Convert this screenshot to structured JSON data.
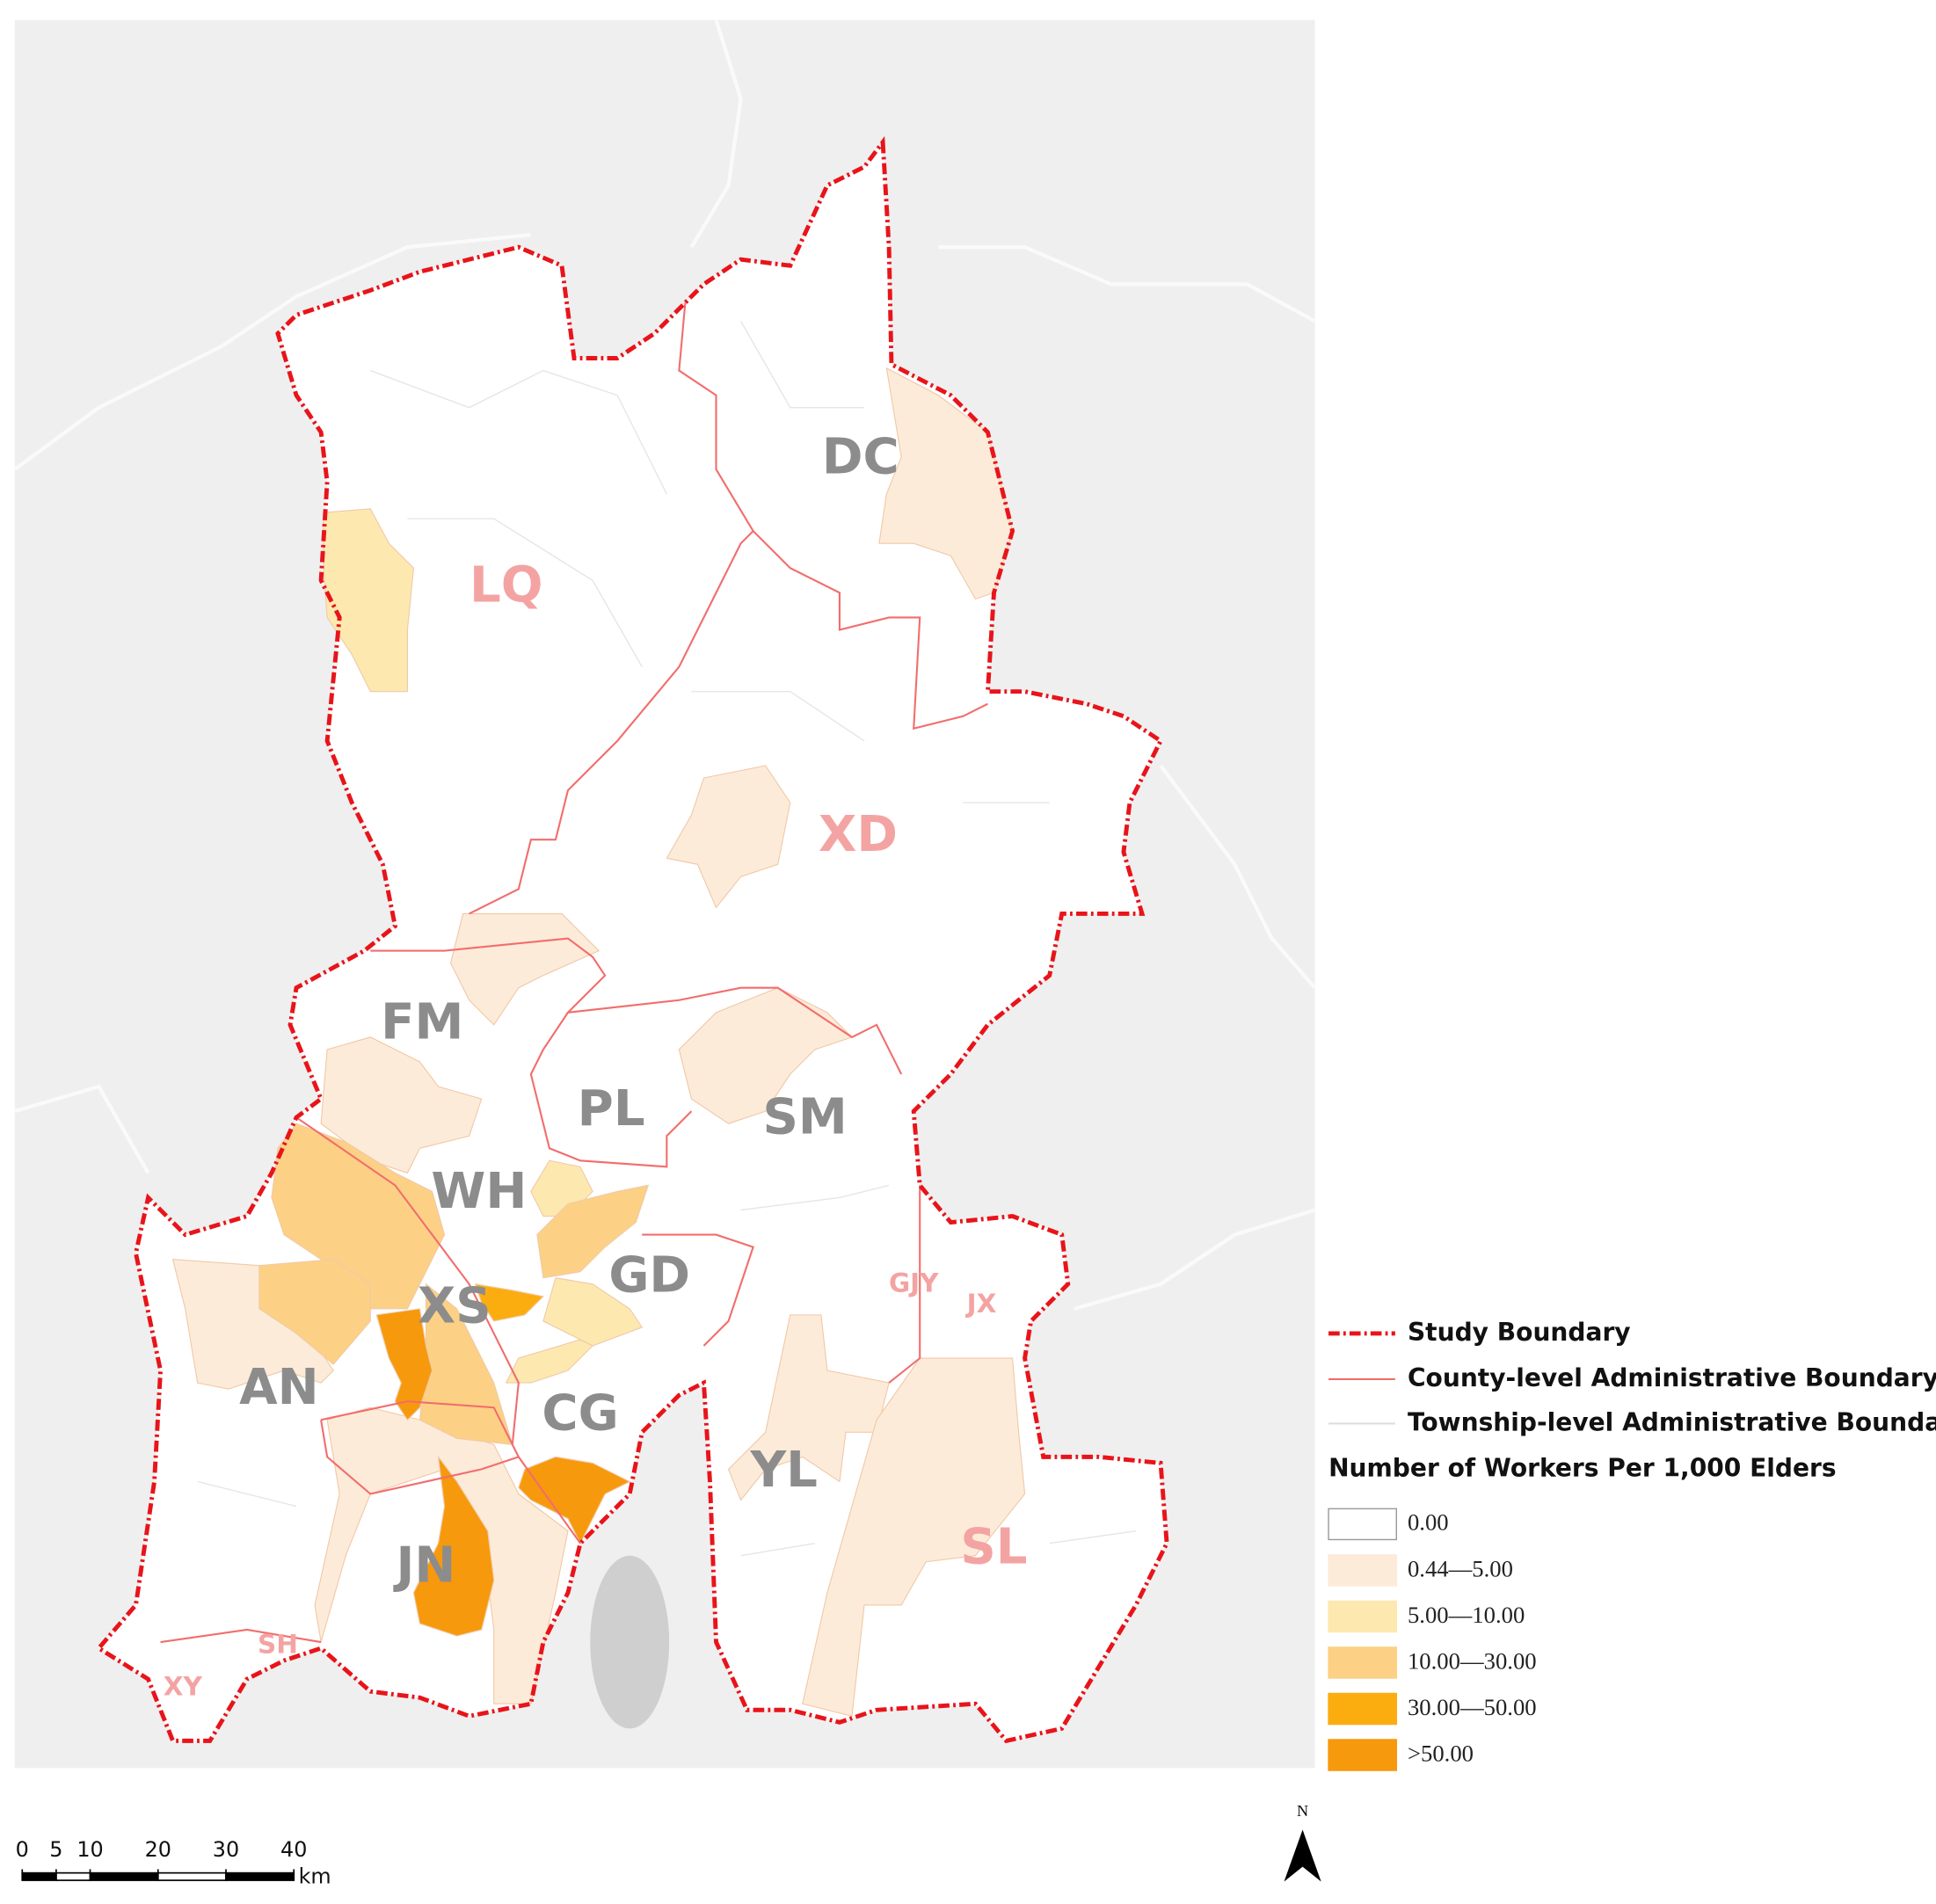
{
  "map": {
    "labels": [
      "DC",
      "LQ",
      "XD",
      "FM",
      "PL",
      "SM",
      "WH",
      "GD",
      "XS",
      "AN",
      "CG",
      "YL",
      "JN",
      "SL",
      "GJY",
      "JX",
      "SH",
      "XY"
    ]
  },
  "legend": {
    "items": [
      "Study Boundary",
      "County-level Administrative Boundary",
      "Township-level Administrative Boundary"
    ],
    "title": "Number of Workers Per 1,000 Elders",
    "classes": [
      {
        "label": "0.00",
        "color": "#ffffff"
      },
      {
        "label": "0.44—5.00",
        "color": "#fdebd9"
      },
      {
        "label": "5.00—10.00",
        "color": "#fde9b0"
      },
      {
        "label": "10.00—30.00",
        "color": "#fcd185"
      },
      {
        "label": "30.00—50.00",
        "color": "#fbad10"
      },
      {
        "label": ">50.00",
        "color": "#f7990c"
      }
    ]
  },
  "scale_bar": {
    "ticks": [
      0,
      5,
      10,
      20,
      30,
      40
    ],
    "unit": "km"
  },
  "north": "N"
}
